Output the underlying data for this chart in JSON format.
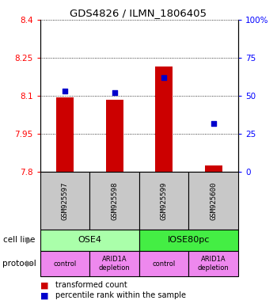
{
  "title": "GDS4826 / ILMN_1806405",
  "samples": [
    "GSM925597",
    "GSM925598",
    "GSM925599",
    "GSM925600"
  ],
  "bar_values": [
    8.095,
    8.085,
    8.215,
    7.825
  ],
  "bar_bottom": 7.8,
  "percentile_values": [
    53,
    52,
    62,
    32
  ],
  "ylim_left": [
    7.8,
    8.4
  ],
  "ylim_right": [
    0,
    100
  ],
  "yticks_left": [
    7.8,
    7.95,
    8.1,
    8.25,
    8.4
  ],
  "ytick_labels_left": [
    "7.8",
    "7.95",
    "8.1",
    "8.25",
    "8.4"
  ],
  "yticks_right": [
    0,
    25,
    50,
    75,
    100
  ],
  "ytick_labels_right": [
    "0",
    "25",
    "50",
    "75",
    "100%"
  ],
  "bar_color": "#cc0000",
  "dot_color": "#0000cc",
  "cell_line_labels": [
    "OSE4",
    "IOSE80pc"
  ],
  "cell_line_colors": [
    "#aaffaa",
    "#44ee44"
  ],
  "protocol_labels": [
    "control",
    "ARID1A\ndepletion",
    "control",
    "ARID1A\ndepletion"
  ],
  "protocol_color": "#ee88ee",
  "sample_bg_color": "#c8c8c8",
  "legend_red_label": "transformed count",
  "legend_blue_label": "percentile rank within the sample",
  "cell_line_row_label": "cell line",
  "protocol_row_label": "protocol"
}
